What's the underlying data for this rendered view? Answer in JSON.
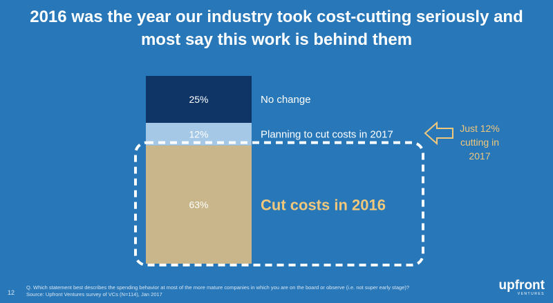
{
  "slide": {
    "title_line1": "2016 was the year our industry took cost-cutting seriously and",
    "title_line2": "most say this work is behind them",
    "page_number": "12",
    "footnote_line1": "Q. Which statement best describes the spending behavior at most of the more mature companies in which you are on the board or observe (i.e. not super early stage)?",
    "footnote_line2": "Source: Upfront Ventures survey of VCs (N=114), Jan 2017",
    "logo_text": "upfront",
    "logo_subtext": "VENTURES",
    "callout_lines": [
      "Just 12%",
      "cutting in",
      "2017"
    ]
  },
  "chart_data": {
    "type": "bar",
    "stacked": true,
    "unit": "%",
    "series": [
      {
        "name": "Cut costs in 2016",
        "value": 63,
        "label": "63%",
        "color": "#c9b68a",
        "label_color": "#f1c77b",
        "emphasis": true
      },
      {
        "name": "Planning to cut costs in 2017",
        "value": 12,
        "label": "12%",
        "color": "#a5c8e6",
        "label_color": "#ffffff",
        "emphasis": false
      },
      {
        "name": "No change",
        "value": 25,
        "label": "25%",
        "color": "#0e3566",
        "label_color": "#ffffff",
        "emphasis": false
      }
    ],
    "colors": {
      "highlight_border": "#ffffff",
      "callout_arrow": "#f1c77b"
    }
  }
}
